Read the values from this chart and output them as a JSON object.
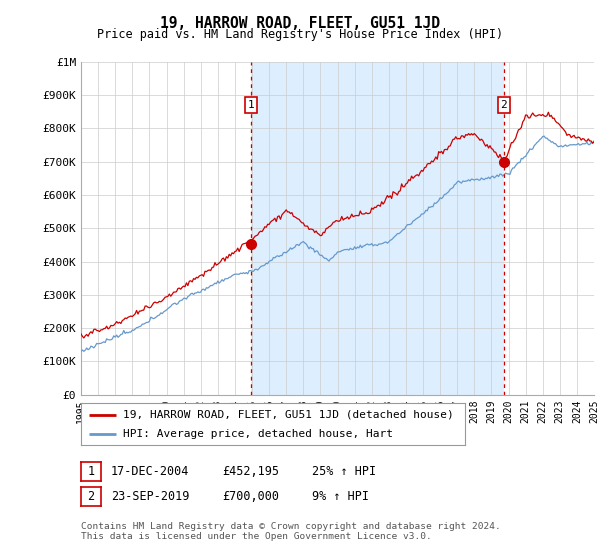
{
  "title": "19, HARROW ROAD, FLEET, GU51 1JD",
  "subtitle": "Price paid vs. HM Land Registry's House Price Index (HPI)",
  "y_ticks": [
    0,
    100000,
    200000,
    300000,
    400000,
    500000,
    600000,
    700000,
    800000,
    900000,
    1000000
  ],
  "y_tick_labels": [
    "£0",
    "£100K",
    "£200K",
    "£300K",
    "£400K",
    "£500K",
    "£600K",
    "£700K",
    "£800K",
    "£900K",
    "£1M"
  ],
  "x_start_year": 1995,
  "x_end_year": 2025,
  "transaction1_date": 2004.96,
  "transaction1_price": 452195,
  "transaction2_date": 2019.73,
  "transaction2_price": 700000,
  "legend_line1": "19, HARROW ROAD, FLEET, GU51 1JD (detached house)",
  "legend_line2": "HPI: Average price, detached house, Hart",
  "footer": "Contains HM Land Registry data © Crown copyright and database right 2024.\nThis data is licensed under the Open Government Licence v3.0.",
  "line_color_price": "#cc0000",
  "line_color_hpi": "#6699cc",
  "dashed_vline_color": "#cc0000",
  "shade_color": "#ddeeff",
  "background_color": "#ffffff",
  "grid_color": "#cccccc"
}
